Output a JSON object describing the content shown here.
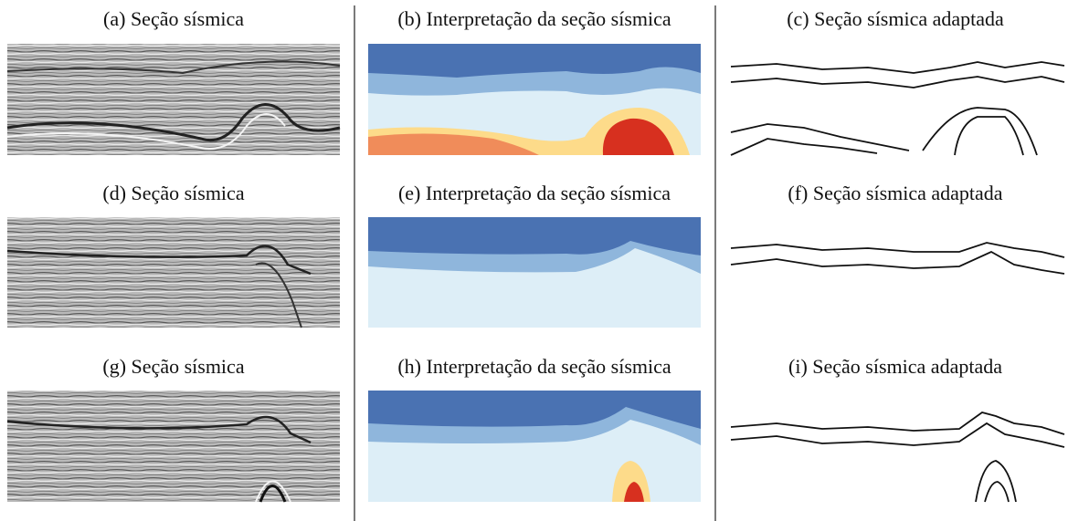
{
  "captions": [
    "(a) Seção sísmica",
    "(b) Interpretação da seção sísmica",
    "(c) Seção sísmica adaptada",
    "(d) Seção sísmica",
    "(e) Interpretação da seção sísmica",
    "(f) Seção sísmica adaptada",
    "(g) Seção sísmica",
    "(h) Interpretação da seção sísmica",
    "(i) Seção sísmica adaptada"
  ]
}
